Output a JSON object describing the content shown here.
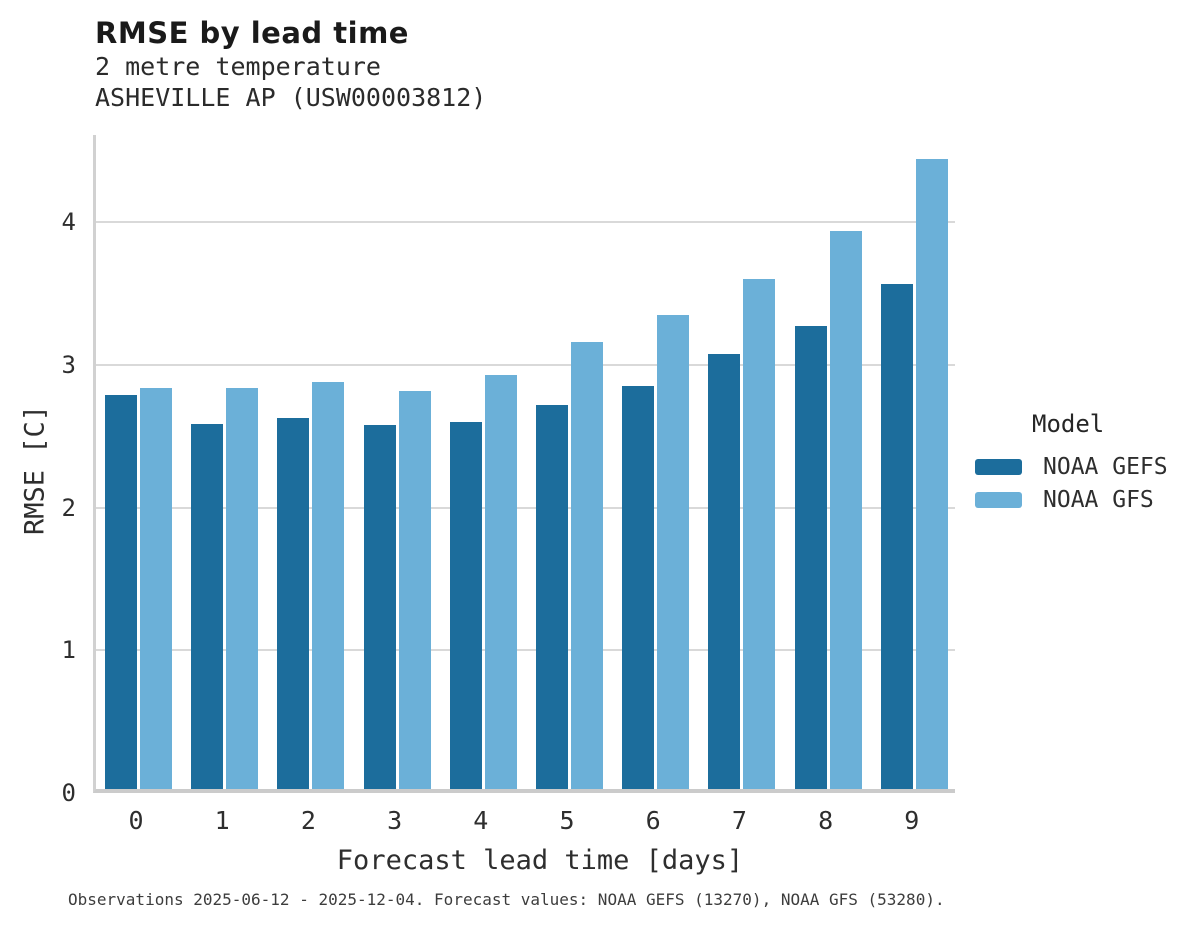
{
  "chart_data": {
    "type": "bar",
    "title": "RMSE by lead time",
    "subtitle_line1": "2 metre temperature",
    "subtitle_line2": "ASHEVILLE AP (USW00003812)",
    "xlabel": "Forecast lead time [days]",
    "ylabel": "RMSE [C]",
    "categories": [
      "0",
      "1",
      "2",
      "3",
      "4",
      "5",
      "6",
      "7",
      "8",
      "9"
    ],
    "yticks": [
      0,
      1,
      2,
      3,
      4
    ],
    "ylim": [
      0,
      4.61
    ],
    "grid": "horizontal-only",
    "legend": {
      "title": "Model",
      "position": "right-center"
    },
    "series": [
      {
        "name": "NOAA GEFS",
        "color": "#1c6d9c",
        "values": [
          2.76,
          2.56,
          2.6,
          2.55,
          2.57,
          2.69,
          2.82,
          3.05,
          3.24,
          3.54
        ]
      },
      {
        "name": "NOAA GFS",
        "color": "#6bb0d8",
        "values": [
          2.81,
          2.81,
          2.85,
          2.79,
          2.9,
          3.13,
          3.32,
          3.57,
          3.91,
          4.41
        ]
      }
    ],
    "footer": "Observations 2025-06-12 - 2025-12-04. Forecast values: NOAA GEFS (13270), NOAA GFS (53280)."
  },
  "colors": {
    "gridline": "#d9d9d9",
    "axis_spine": "#cbcbcb",
    "text_dark": "#1a1a1a"
  }
}
